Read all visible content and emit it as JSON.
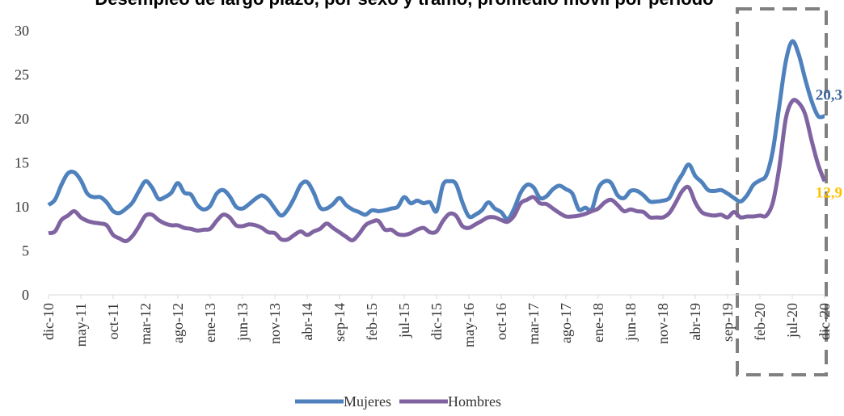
{
  "chart_data": {
    "type": "line",
    "title": "Desempleo de largo plazo, por sexo y tramo, promedio móvil por período",
    "categories": [
      "dic-10",
      null,
      null,
      null,
      null,
      "may-11",
      null,
      null,
      null,
      null,
      "oct-11",
      null,
      null,
      null,
      null,
      "mar-12",
      null,
      null,
      null,
      null,
      "ago-12",
      null,
      null,
      null,
      null,
      "ene-13",
      null,
      null,
      null,
      null,
      "jun-13",
      null,
      null,
      null,
      null,
      "nov-13",
      null,
      null,
      null,
      null,
      "abr-14",
      null,
      null,
      null,
      null,
      "sep-14",
      null,
      null,
      null,
      null,
      "feb-15",
      null,
      null,
      null,
      null,
      "jul-15",
      null,
      null,
      null,
      null,
      "dic-15",
      null,
      null,
      null,
      null,
      "may-16",
      null,
      null,
      null,
      null,
      "oct-16",
      null,
      null,
      null,
      null,
      "mar-17",
      null,
      null,
      null,
      null,
      "ago-17",
      null,
      null,
      null,
      null,
      "ene-18",
      null,
      null,
      null,
      null,
      "jun-18",
      null,
      null,
      null,
      null,
      "nov-18",
      null,
      null,
      null,
      null,
      "abr-19",
      null,
      null,
      null,
      null,
      "sep-19",
      null,
      null,
      null,
      null,
      "feb-20",
      null,
      null,
      null,
      null,
      "jul-20",
      null,
      null,
      null,
      null,
      "dic-20"
    ],
    "series": [
      {
        "name": "Mujeres",
        "color": "#4f81bd",
        "values": [
          10.2,
          10.8,
          12.5,
          13.8,
          13.9,
          13,
          11.5,
          11.1,
          11.1,
          10.5,
          9.5,
          9.3,
          9.8,
          10.5,
          11.8,
          12.9,
          12.2,
          10.9,
          11.1,
          11.6,
          12.7,
          11.6,
          11.4,
          10.2,
          9.7,
          10.1,
          11.5,
          11.9,
          11.2,
          10,
          9.8,
          10.3,
          10.9,
          11.3,
          10.8,
          9.8,
          9,
          9.7,
          11,
          12.5,
          12.8,
          11.6,
          9.9,
          9.8,
          10.3,
          11,
          10.2,
          9.7,
          9.4,
          9.1,
          9.6,
          9.5,
          9.6,
          9.8,
          10,
          11.1,
          10.4,
          10.7,
          10.4,
          10.5,
          9.5,
          12.5,
          12.9,
          12.6,
          10.5,
          8.9,
          9.1,
          9.6,
          10.5,
          9.8,
          9.4,
          8.6,
          9.8,
          11.6,
          12.5,
          12.2,
          11,
          11.2,
          12,
          12.4,
          12,
          11.5,
          9.7,
          9.9,
          9.7,
          12.1,
          12.9,
          12.7,
          11.3,
          11,
          11.8,
          11.8,
          11.3,
          10.6,
          10.6,
          10.7,
          11,
          12.5,
          13.7,
          14.8,
          13.5,
          12.8,
          11.9,
          11.8,
          11.9,
          11.5,
          11,
          10.6,
          11.3,
          12.5,
          13,
          13.6,
          16.4,
          21.5,
          26.5,
          28.8,
          27.3,
          24.5,
          22,
          20.3,
          20.3
        ],
        "value_labels": {
          "120": "20,3"
        },
        "label_color": "#3e659b"
      },
      {
        "name": "Hombres",
        "color": "#8064a2",
        "values": [
          7,
          7.2,
          8.5,
          9,
          9.5,
          8.8,
          8.4,
          8.2,
          8.1,
          7.9,
          6.8,
          6.4,
          6.1,
          6.7,
          7.8,
          9,
          9.1,
          8.5,
          8.1,
          7.9,
          7.9,
          7.6,
          7.5,
          7.3,
          7.4,
          7.5,
          8.4,
          9.1,
          8.8,
          7.9,
          7.8,
          8,
          7.9,
          7.6,
          7.1,
          7,
          6.3,
          6.3,
          6.8,
          7.2,
          6.8,
          7.2,
          7.5,
          8.1,
          7.6,
          7.1,
          6.6,
          6.2,
          6.9,
          7.9,
          8.3,
          8.4,
          7.4,
          7.4,
          6.9,
          6.8,
          7,
          7.4,
          7.6,
          7.1,
          7.2,
          8.4,
          9.2,
          9,
          7.8,
          7.6,
          8,
          8.4,
          8.8,
          8.8,
          8.5,
          8.3,
          9,
          10.4,
          10.8,
          11.1,
          10.4,
          10.3,
          9.8,
          9.3,
          8.9,
          8.9,
          9,
          9.2,
          9.5,
          9.8,
          10.5,
          10.8,
          10.2,
          9.5,
          9.7,
          9.5,
          9.4,
          8.8,
          8.8,
          8.8,
          9.3,
          10.5,
          11.8,
          12.2,
          10.5,
          9.4,
          9.1,
          9,
          9.1,
          8.8,
          9.4,
          8.8,
          8.9,
          8.9,
          9,
          9,
          10.5,
          14.5,
          20,
          22,
          21.8,
          20.5,
          17.5,
          14.8,
          12.9
        ],
        "value_labels": {
          "120": "12,9"
        },
        "label_color": "#ffc000"
      }
    ],
    "ylim": [
      0,
      30
    ],
    "yticks": [
      0,
      5,
      10,
      15,
      20,
      25,
      30
    ],
    "grid": false,
    "legend": "bottom"
  }
}
